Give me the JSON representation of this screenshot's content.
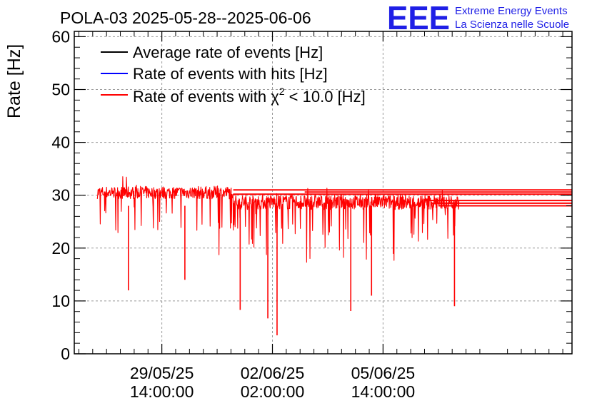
{
  "chart_data": {
    "type": "line",
    "title": "POLA-03 2025-05-28--2025-06-06",
    "ylabel": "Rate [Hz]",
    "xlabel": "",
    "ylim": [
      0,
      61
    ],
    "yticks": [
      0,
      10,
      20,
      30,
      40,
      50,
      60
    ],
    "xlim_hours": [
      0,
      216
    ],
    "x_ticks": [
      {
        "hour": 38,
        "date": "29/05/25",
        "time": "14:00:00"
      },
      {
        "hour": 86,
        "date": "02/06/25",
        "time": "02:00:00"
      },
      {
        "hour": 134,
        "date": "05/06/25",
        "time": "14:00:00"
      }
    ],
    "grid": true,
    "legend_position": "top-left",
    "series": [
      {
        "name": "Average rate of events [Hz]",
        "color": "#000000",
        "values": []
      },
      {
        "name": "Rate of events with hits [Hz]",
        "color": "#0000ff",
        "values": []
      },
      {
        "name": "Rate of events with χ² < 10.0 [Hz]",
        "color": "#ff0000",
        "segments": [
          {
            "start_hour": 10,
            "end_hour": 69,
            "baseline": 30.5,
            "noise": 1.2
          },
          {
            "start_hour": 69,
            "end_hour": 167,
            "baseline": 28.7,
            "noise": 1.4
          }
        ],
        "flat_lines": [
          {
            "from_hour": 69,
            "value": 31.0
          },
          {
            "from_hour": 69,
            "value": 30.2
          },
          {
            "from_hour": 100,
            "value": 30.6
          },
          {
            "from_hour": 152,
            "value": 29.0
          },
          {
            "from_hour": 155,
            "value": 28.5
          },
          {
            "from_hour": 158,
            "value": 28.0
          }
        ],
        "dips": [
          {
            "hour": 23.5,
            "value": 12
          },
          {
            "hour": 48,
            "value": 14
          },
          {
            "hour": 72,
            "value": 8.3
          },
          {
            "hour": 84,
            "value": 6.7
          },
          {
            "hour": 88,
            "value": 3.5
          },
          {
            "hour": 120,
            "value": 8.1
          },
          {
            "hour": 129,
            "value": 11
          },
          {
            "hour": 165,
            "value": 9
          }
        ]
      }
    ]
  },
  "legend": {
    "item1": "Average rate of events [Hz]",
    "item2": "Rate of events with hits [Hz]",
    "item3_prefix": "Rate of events with χ",
    "item3_sup": "2",
    "item3_suffix": " < 10.0 [Hz]"
  },
  "logo": {
    "mark": "EEE",
    "line1": "Extreme Energy Events",
    "line2": "La Scienza nelle Scuole",
    "color": "#1f1fe6"
  }
}
